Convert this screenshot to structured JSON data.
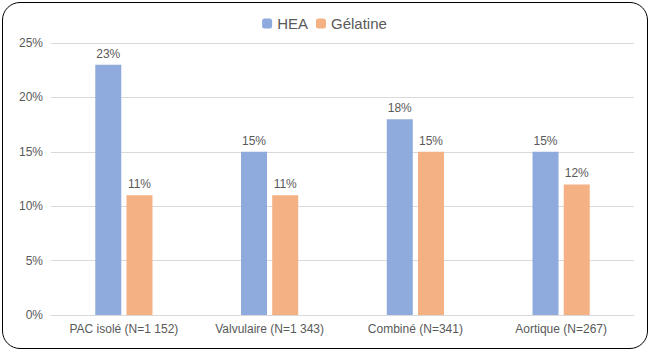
{
  "chart_data": {
    "type": "bar",
    "categories": [
      "PAC isolé (N=1 152)",
      "Valvulaire (N=1 343)",
      "Combiné (N=341)",
      "Aortique (N=267)"
    ],
    "series": [
      {
        "name": "HEA",
        "color": "#8FAADC",
        "values": [
          23,
          15,
          18,
          15
        ],
        "value_labels": [
          "23%",
          "15%",
          "18%",
          "15%"
        ]
      },
      {
        "name": "Gélatine",
        "color": "#F4B183",
        "values": [
          11,
          11,
          15,
          12
        ],
        "value_labels": [
          "11%",
          "11%",
          "15%",
          "12%"
        ]
      }
    ],
    "ylim": [
      0,
      25
    ],
    "yticks": [
      {
        "value": 0,
        "label": "0%"
      },
      {
        "value": 5,
        "label": "5%"
      },
      {
        "value": 10,
        "label": "10%"
      },
      {
        "value": 15,
        "label": "15%"
      },
      {
        "value": 20,
        "label": "20%"
      },
      {
        "value": 25,
        "label": "25%"
      }
    ],
    "grid": true,
    "legend": "top",
    "data_labels": true
  }
}
